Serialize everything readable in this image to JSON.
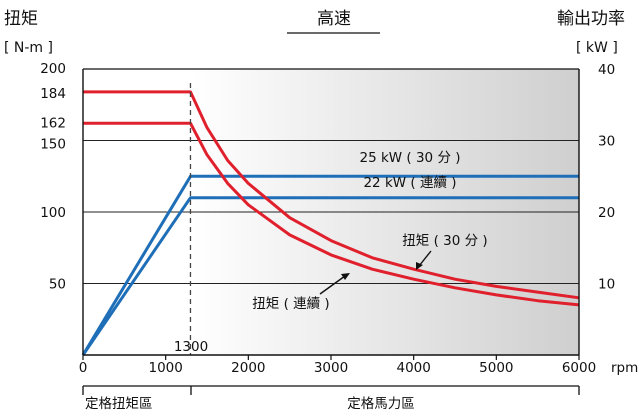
{
  "chart_data": {
    "type": "line",
    "x_label": "rpm",
    "x_ticks": [
      0,
      1000,
      2000,
      3000,
      4000,
      5000,
      6000
    ],
    "x_range": [
      0,
      6000
    ],
    "y_left": {
      "title": "扭矩",
      "unit": "[ N-m ]",
      "range": [
        0,
        200
      ],
      "ticks": [
        50,
        100,
        150,
        162,
        184,
        200
      ]
    },
    "y_right": {
      "title": "輸出功率",
      "unit": "[ kW ]",
      "range": [
        0,
        40
      ],
      "ticks": [
        10,
        20,
        30,
        40
      ]
    },
    "marker": {
      "x": 1300,
      "label": "1300"
    },
    "regions": {
      "top_high_speed": "高速",
      "bottom_left": "定格扭矩區",
      "bottom_right": "定格馬力區"
    },
    "series": [
      {
        "name": "25 kW ( 30 分 )",
        "axis": "right",
        "color": "#1f6fb8",
        "points": [
          [
            0,
            0
          ],
          [
            1300,
            25
          ],
          [
            6000,
            25
          ]
        ]
      },
      {
        "name": "22 kW ( 連續 )",
        "axis": "right",
        "color": "#1f6fb8",
        "points": [
          [
            0,
            0
          ],
          [
            1300,
            22
          ],
          [
            6000,
            22
          ]
        ]
      },
      {
        "name": "扭矩 ( 30 分 )",
        "axis": "left",
        "color": "#e0202c",
        "points": [
          [
            0,
            184
          ],
          [
            1300,
            184
          ],
          [
            1500,
            159
          ],
          [
            1750,
            136
          ],
          [
            2000,
            120
          ],
          [
            2500,
            96
          ],
          [
            3000,
            80
          ],
          [
            3500,
            68
          ],
          [
            4000,
            60
          ],
          [
            4500,
            53
          ],
          [
            5000,
            48
          ],
          [
            5500,
            44
          ],
          [
            6000,
            40
          ]
        ]
      },
      {
        "name": "扭矩 ( 連續 )",
        "axis": "left",
        "color": "#e0202c",
        "points": [
          [
            0,
            162
          ],
          [
            1300,
            162
          ],
          [
            1500,
            140
          ],
          [
            1750,
            120
          ],
          [
            2000,
            105
          ],
          [
            2500,
            84
          ],
          [
            3000,
            70
          ],
          [
            3500,
            60
          ],
          [
            4000,
            53
          ],
          [
            4500,
            47
          ],
          [
            5000,
            42
          ],
          [
            5500,
            38
          ],
          [
            6000,
            35
          ]
        ]
      }
    ]
  }
}
